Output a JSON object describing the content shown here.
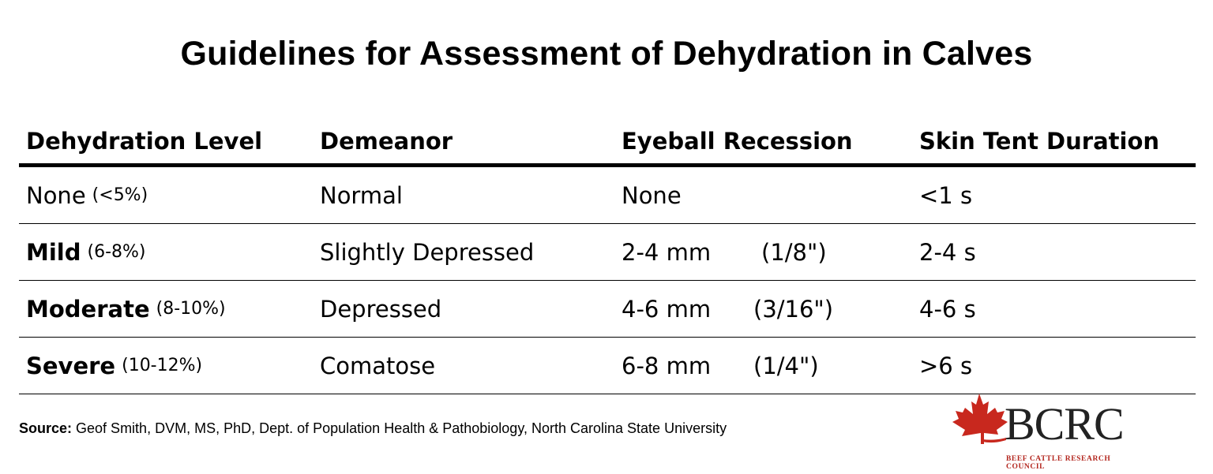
{
  "title": "Guidelines for Assessment of Dehydration in Calves",
  "table": {
    "headers": [
      "Dehydration Level",
      "Demeanor",
      "Eyeball Recession",
      "Skin Tent Duration"
    ],
    "rows": [
      {
        "level": "None",
        "level_bold": false,
        "pct": "(<5%)",
        "demeanor": "Normal",
        "recession_mm": "None",
        "recession_in": "",
        "skin_tent": "<1 s"
      },
      {
        "level": "Mild",
        "level_bold": true,
        "pct": "(6-8%)",
        "demeanor": "Slightly Depressed",
        "recession_mm": "2-4 mm",
        "recession_in": "(1/8\")",
        "skin_tent": "2-4 s"
      },
      {
        "level": "Moderate",
        "level_bold": true,
        "pct": "(8-10%)",
        "demeanor": "Depressed",
        "recession_mm": "4-6 mm",
        "recession_in": "(3/16\")",
        "skin_tent": "4-6 s"
      },
      {
        "level": "Severe",
        "level_bold": true,
        "pct": "(10-12%)",
        "demeanor": "Comatose",
        "recession_mm": "6-8 mm",
        "recession_in": "(1/4\")",
        "skin_tent": ">6 s"
      }
    ]
  },
  "source": {
    "label": "Source:",
    "text": " Geof Smith, DVM, MS, PhD, Dept. of Population Health & Pathobiology, North Carolina State University"
  },
  "logo": {
    "text": "BCRC",
    "subtitle": "BEEF CATTLE RESEARCH COUNCIL",
    "icon": "maple-leaf-icon",
    "leaf_color": "#c8281e"
  }
}
